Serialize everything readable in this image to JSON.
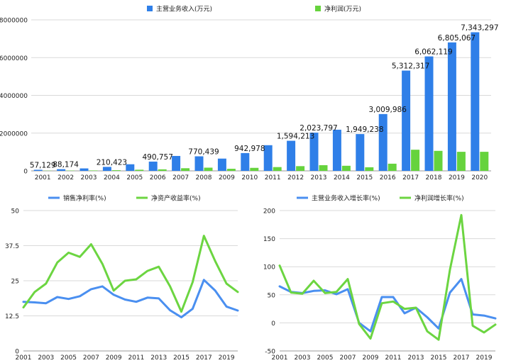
{
  "chart_data": [
    {
      "type": "bar",
      "title": "",
      "legend_position": "top",
      "categories": [
        "2001",
        "2002",
        "2003",
        "2004",
        "2005",
        "2006",
        "2007",
        "2008",
        "2009",
        "2010",
        "2011",
        "2012",
        "2013",
        "2014",
        "2015",
        "2016",
        "2017",
        "2018",
        "2019",
        "2020"
      ],
      "ylim": [
        0,
        8000000
      ],
      "yticks": [
        0,
        2000000,
        4000000,
        6000000,
        8000000
      ],
      "ytick_labels": [
        "0",
        "2000000",
        "4000000",
        "6000000",
        "8000000"
      ],
      "grid": true,
      "series": [
        {
          "name": "主营业务收入(万元)",
          "color": "#2f7fe8",
          "values": [
            57129,
            88174,
            130000,
            210423,
            350000,
            490757,
            790000,
            770439,
            650000,
            942978,
            1360000,
            1594213,
            2023797,
            2180000,
            1949238,
            3009986,
            5312317,
            6062119,
            6805067,
            7343297
          ]
        },
        {
          "name": "净利润(万元)",
          "color": "#66d33d",
          "values": [
            10000,
            15000,
            22000,
            35000,
            60000,
            80000,
            140000,
            170000,
            110000,
            160000,
            200000,
            250000,
            300000,
            270000,
            190000,
            380000,
            1120000,
            1060000,
            1010000,
            1010000
          ]
        }
      ],
      "data_labels": [
        {
          "index": 0,
          "text": "57,129"
        },
        {
          "index": 1,
          "text": "88,174"
        },
        {
          "index": 3,
          "text": "210,423"
        },
        {
          "index": 5,
          "text": "490,757"
        },
        {
          "index": 7,
          "text": "770,439"
        },
        {
          "index": 9,
          "text": "942,978"
        },
        {
          "index": 11,
          "text": "1,594,213"
        },
        {
          "index": 12,
          "text": "2,023,797"
        },
        {
          "index": 14,
          "text": "1,949,238"
        },
        {
          "index": 15,
          "text": "3,009,986"
        },
        {
          "index": 16,
          "text": "5,312,317"
        },
        {
          "index": 17,
          "text": "6,062,119"
        },
        {
          "index": 18,
          "text": "6,805,067"
        },
        {
          "index": 19,
          "text": "7,343,297"
        }
      ]
    },
    {
      "type": "line",
      "title": "",
      "legend_position": "top",
      "x": [
        "2001",
        "2002",
        "2003",
        "2004",
        "2005",
        "2006",
        "2007",
        "2008",
        "2009",
        "2010",
        "2011",
        "2012",
        "2013",
        "2014",
        "2015",
        "2016",
        "2017",
        "2018",
        "2019",
        "2020"
      ],
      "xtick_labels": [
        "2001",
        "2003",
        "2005",
        "2007",
        "2009",
        "2011",
        "2013",
        "2015",
        "2017",
        "2019"
      ],
      "ylim": [
        0,
        50
      ],
      "yticks": [
        0,
        12.5,
        25,
        37.5,
        50
      ],
      "ytick_labels": [
        "0",
        "12.5",
        "25",
        "37.5",
        "50"
      ],
      "grid": true,
      "series": [
        {
          "name": "销售净利率(%)",
          "color": "#4a8ff0",
          "values": [
            17.5,
            17.3,
            17.0,
            19.2,
            18.5,
            19.5,
            22.0,
            23.0,
            20.0,
            18.3,
            17.5,
            19.0,
            18.7,
            14.5,
            12.0,
            15.0,
            25.3,
            21.5,
            15.8,
            14.4
          ]
        },
        {
          "name": "净资产收益率(%)",
          "color": "#6cd541",
          "values": [
            15.5,
            21.0,
            24.0,
            31.5,
            35.0,
            33.5,
            38.0,
            31.0,
            21.5,
            25.0,
            25.5,
            28.5,
            30.0,
            23.0,
            14.0,
            24.5,
            41.0,
            32.0,
            24.0,
            21.0
          ]
        }
      ]
    },
    {
      "type": "line",
      "title": "",
      "legend_position": "top",
      "x": [
        "2001",
        "2002",
        "2003",
        "2004",
        "2005",
        "2006",
        "2007",
        "2008",
        "2009",
        "2010",
        "2011",
        "2012",
        "2013",
        "2014",
        "2015",
        "2016",
        "2017",
        "2018",
        "2019",
        "2020"
      ],
      "xtick_labels": [
        "2001",
        "2003",
        "2005",
        "2007",
        "2009",
        "2011",
        "2013",
        "2015",
        "2017",
        "2019"
      ],
      "ylim": [
        -50,
        200
      ],
      "yticks": [
        -50,
        0,
        50,
        100,
        150,
        200
      ],
      "ytick_labels": [
        "-50",
        "0",
        "50",
        "100",
        "150",
        "200"
      ],
      "grid": true,
      "series": [
        {
          "name": "主营业务收入增长率(%)",
          "color": "#4a8ff0",
          "values": [
            65,
            55,
            53,
            57,
            58,
            51,
            60,
            0,
            -15,
            46,
            46,
            17,
            27,
            10,
            -10,
            54,
            78,
            15,
            13,
            8
          ]
        },
        {
          "name": "净利润增长率(%)",
          "color": "#6cd541",
          "values": [
            102,
            54,
            52,
            75,
            53,
            55,
            78,
            -2,
            -28,
            35,
            38,
            25,
            27,
            -15,
            -30,
            95,
            192,
            -5,
            -17,
            -3
          ]
        }
      ]
    }
  ]
}
